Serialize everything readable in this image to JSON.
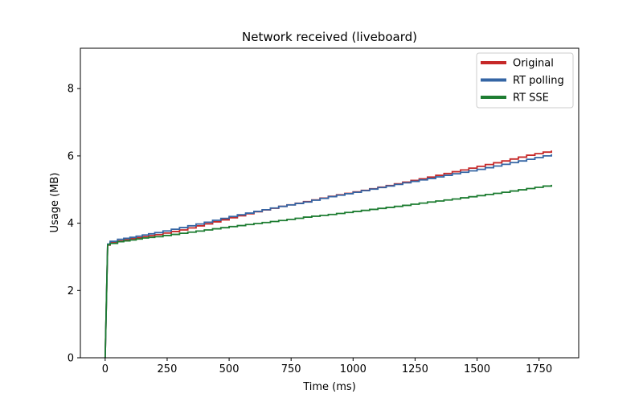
{
  "chart_data": {
    "type": "line",
    "title": "Network received (liveboard)",
    "xlabel": "Time (ms)",
    "ylabel": "Usage (MB)",
    "xlim": [
      -100,
      1910
    ],
    "ylim": [
      0,
      9.2
    ],
    "xticks": [
      0,
      250,
      500,
      750,
      1000,
      1250,
      1500,
      1750
    ],
    "yticks": [
      0,
      2,
      4,
      6,
      8
    ],
    "grid": false,
    "legend": "top-right",
    "series": [
      {
        "name": "Original",
        "color": "#c62828",
        "x": [
          0,
          10,
          20,
          50,
          100,
          150,
          200,
          300,
          400,
          500,
          600,
          700,
          800,
          900,
          1000,
          1100,
          1200,
          1300,
          1400,
          1500,
          1600,
          1700,
          1800
        ],
        "y": [
          0.0,
          3.35,
          3.42,
          3.47,
          3.54,
          3.6,
          3.66,
          3.8,
          3.98,
          4.16,
          4.34,
          4.5,
          4.64,
          4.8,
          4.93,
          5.07,
          5.22,
          5.37,
          5.53,
          5.69,
          5.85,
          6.02,
          6.16
        ]
      },
      {
        "name": "RT polling",
        "color": "#3465a4",
        "x": [
          0,
          10,
          20,
          50,
          100,
          150,
          200,
          300,
          400,
          500,
          600,
          700,
          800,
          900,
          1000,
          1100,
          1200,
          1300,
          1400,
          1500,
          1600,
          1700,
          1800
        ],
        "y": [
          0.0,
          3.38,
          3.46,
          3.52,
          3.58,
          3.65,
          3.72,
          3.87,
          4.03,
          4.2,
          4.35,
          4.5,
          4.63,
          4.79,
          4.92,
          5.06,
          5.2,
          5.33,
          5.47,
          5.6,
          5.75,
          5.9,
          6.05
        ]
      },
      {
        "name": "RT SSE",
        "color": "#1e7d32",
        "x": [
          0,
          10,
          20,
          50,
          100,
          150,
          200,
          300,
          400,
          500,
          600,
          700,
          800,
          900,
          1000,
          1100,
          1200,
          1300,
          1400,
          1500,
          1600,
          1700,
          1800
        ],
        "y": [
          0.0,
          3.36,
          3.4,
          3.45,
          3.5,
          3.56,
          3.6,
          3.7,
          3.8,
          3.9,
          3.99,
          4.08,
          4.18,
          4.26,
          4.35,
          4.44,
          4.53,
          4.63,
          4.72,
          4.82,
          4.92,
          5.03,
          5.14
        ]
      }
    ]
  }
}
